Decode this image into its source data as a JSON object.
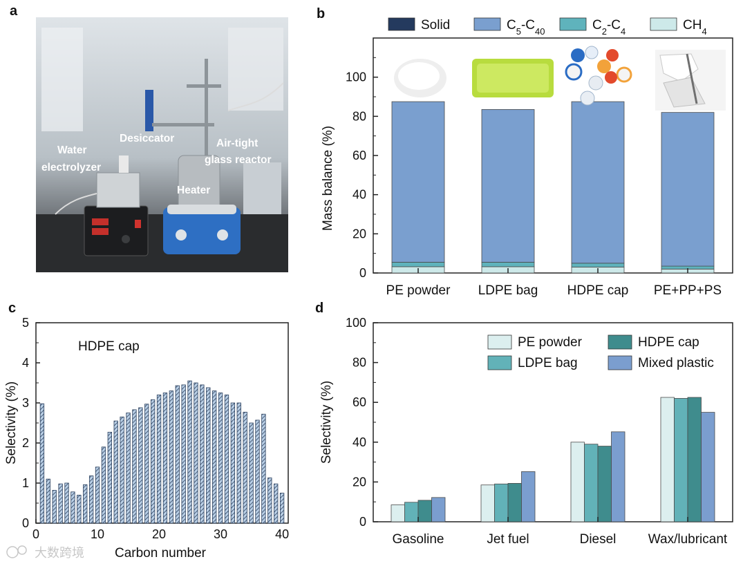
{
  "panels": {
    "a": "a",
    "b": "b",
    "c": "c",
    "d": "d"
  },
  "photo": {
    "labels": {
      "water": "Water",
      "electrolyzer": "electrolyzer",
      "desiccator": "Desiccator",
      "airtight": "Air-tight",
      "glass_reactor": "glass reactor",
      "heater": "Heater"
    }
  },
  "watermark": "大数跨境",
  "colors": {
    "solid": "#243a5e",
    "c5c40": "#7a9fcf",
    "c2c4": "#5fb3bc",
    "ch4": "#cde9e9",
    "pe_powder": "#dcefef",
    "ldpe_bag": "#62b2b8",
    "hdpe_cap": "#3f8c8d",
    "mixed": "#7b9ecf"
  },
  "chart_data": [
    {
      "panel": "b",
      "type": "bar",
      "stacked": true,
      "ylabel": "Mass balance (%)",
      "ylim": [
        0,
        120
      ],
      "yticks": [
        0,
        20,
        40,
        60,
        80,
        100
      ],
      "categories": [
        "PE powder",
        "LDPE bag",
        "HDPE cap",
        "PE+PP+PS"
      ],
      "legend": {
        "solid": "Solid",
        "c5c40": "C5-C40",
        "c2c4": "C2-C4",
        "ch4": "CH4"
      },
      "series": [
        {
          "name": "CH4",
          "values": [
            3.2,
            3.2,
            3.0,
            2.0
          ]
        },
        {
          "name": "C2-C4",
          "values": [
            2.3,
            2.3,
            2.0,
            1.5
          ]
        },
        {
          "name": "C5-C40",
          "values": [
            82.0,
            78.0,
            82.5,
            78.5
          ]
        },
        {
          "name": "Solid",
          "values": [
            0,
            0,
            0,
            0
          ]
        }
      ]
    },
    {
      "panel": "c",
      "type": "bar",
      "title": "HDPE cap",
      "xlabel": "Carbon number",
      "ylabel": "Selectivity (%)",
      "xlim": [
        0,
        41
      ],
      "ylim": [
        0,
        5
      ],
      "xticks": [
        0,
        10,
        20,
        30,
        40
      ],
      "yticks": [
        0,
        1,
        2,
        3,
        4,
        5
      ],
      "x": [
        1,
        2,
        3,
        4,
        5,
        6,
        7,
        8,
        9,
        10,
        11,
        12,
        13,
        14,
        15,
        16,
        17,
        18,
        19,
        20,
        21,
        22,
        23,
        24,
        25,
        26,
        27,
        28,
        29,
        30,
        31,
        32,
        33,
        34,
        35,
        36,
        37,
        38,
        39,
        40
      ],
      "values": [
        2.98,
        1.1,
        0.82,
        0.98,
        1.0,
        0.78,
        0.7,
        0.96,
        1.18,
        1.4,
        1.9,
        2.27,
        2.55,
        2.65,
        2.75,
        2.83,
        2.88,
        2.97,
        3.08,
        3.2,
        3.25,
        3.3,
        3.43,
        3.45,
        3.55,
        3.5,
        3.45,
        3.38,
        3.3,
        3.25,
        3.2,
        3.0,
        3.0,
        2.77,
        2.5,
        2.57,
        2.72,
        1.13,
        0.98,
        0.75
      ]
    },
    {
      "panel": "d",
      "type": "bar",
      "ylabel": "Selectivity (%)",
      "ylim": [
        0,
        100
      ],
      "yticks": [
        0,
        20,
        40,
        60,
        80,
        100
      ],
      "categories": [
        "Gasoline",
        "Jet fuel",
        "Diesel",
        "Wax/lubricant"
      ],
      "legend": {
        "pe_powder": "PE powder",
        "ldpe_bag": "LDPE bag",
        "hdpe_cap": "HDPE cap",
        "mixed": "Mixed plastic"
      },
      "series": [
        {
          "name": "PE powder",
          "values": [
            8.5,
            18.5,
            40.0,
            62.5
          ]
        },
        {
          "name": "LDPE bag",
          "values": [
            9.8,
            19.0,
            39.0,
            62.0
          ]
        },
        {
          "name": "HDPE cap",
          "values": [
            10.8,
            19.3,
            38.0,
            62.5
          ]
        },
        {
          "name": "Mixed plastic",
          "values": [
            12.2,
            25.2,
            45.2,
            55.0
          ]
        }
      ]
    }
  ]
}
